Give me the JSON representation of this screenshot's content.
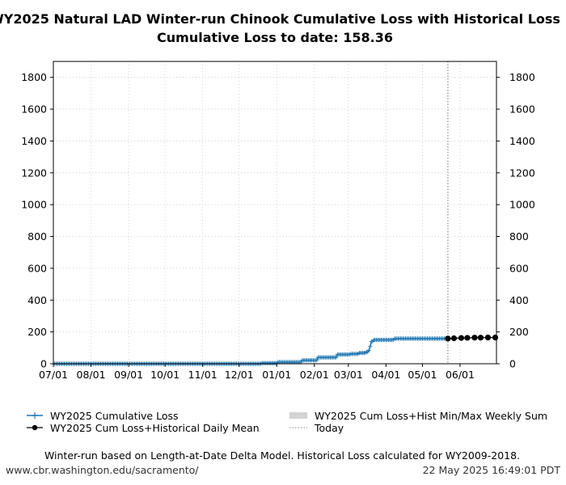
{
  "chart_data": {
    "type": "line",
    "title": "WY2025 Natural LAD Winter-run Chinook Cumulative Loss with Historical Loss",
    "subtitle": "Cumulative Loss to date: 158.36",
    "xlabel": "",
    "ylabel": "",
    "x_range_days": [
      0,
      365
    ],
    "ylim": [
      0,
      1900
    ],
    "grid": true,
    "x_ticks": [
      {
        "label": "07/01",
        "day": 0
      },
      {
        "label": "08/01",
        "day": 31
      },
      {
        "label": "09/01",
        "day": 62
      },
      {
        "label": "10/01",
        "day": 92
      },
      {
        "label": "11/01",
        "day": 123
      },
      {
        "label": "12/01",
        "day": 153
      },
      {
        "label": "01/01",
        "day": 184
      },
      {
        "label": "02/01",
        "day": 215
      },
      {
        "label": "03/01",
        "day": 243
      },
      {
        "label": "04/01",
        "day": 274
      },
      {
        "label": "05/01",
        "day": 304
      },
      {
        "label": "06/01",
        "day": 335
      }
    ],
    "y_ticks": [
      0,
      200,
      400,
      600,
      800,
      1000,
      1200,
      1400,
      1600,
      1800
    ],
    "today_day": 325,
    "series": [
      {
        "name": "WY2025 Cumulative Loss",
        "color": "#1f77b4",
        "marker": "plus",
        "steps": [
          {
            "day": 0,
            "value": 0
          },
          {
            "day": 172,
            "value": 4
          },
          {
            "day": 185,
            "value": 10
          },
          {
            "day": 205,
            "value": 22
          },
          {
            "day": 218,
            "value": 40
          },
          {
            "day": 234,
            "value": 58
          },
          {
            "day": 245,
            "value": 62
          },
          {
            "day": 252,
            "value": 68
          },
          {
            "day": 258,
            "value": 75
          },
          {
            "day": 260,
            "value": 85
          },
          {
            "day": 261,
            "value": 110
          },
          {
            "day": 262,
            "value": 140
          },
          {
            "day": 264,
            "value": 150
          },
          {
            "day": 281,
            "value": 158
          },
          {
            "day": 325,
            "value": 158.36
          }
        ]
      },
      {
        "name": "WY2025 Cum Loss+Historical Daily Mean",
        "color": "#000000",
        "marker": "circle",
        "points": [
          {
            "day": 325,
            "value": 158.36
          },
          {
            "day": 330,
            "value": 160
          },
          {
            "day": 336,
            "value": 162
          },
          {
            "day": 341,
            "value": 163
          },
          {
            "day": 347,
            "value": 164
          },
          {
            "day": 352,
            "value": 164
          },
          {
            "day": 358,
            "value": 165
          },
          {
            "day": 364,
            "value": 165
          }
        ]
      },
      {
        "name": "WY2025 Cum Loss+Hist Min/Max Weekly Sum",
        "color": "#d3d3d3",
        "marker": "band"
      },
      {
        "name": "Today",
        "color": "#888888",
        "marker": "dotted-line"
      }
    ],
    "footnote": "Winter-run based on Length-at-Date Delta Model. Historical Loss calculated for WY2009-2018.",
    "source": "www.cbr.washington.edu/sacramento/",
    "timestamp": "22 May 2025 16:49:01 PDT"
  }
}
